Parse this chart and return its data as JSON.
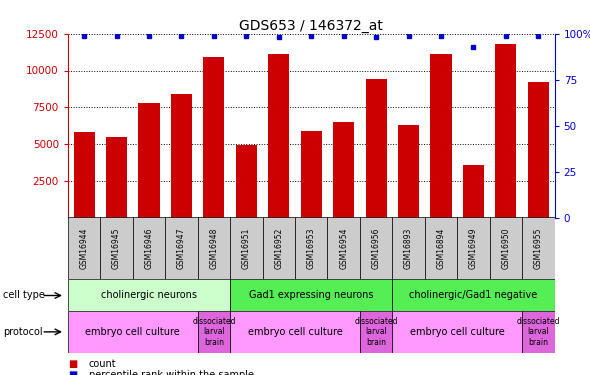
{
  "title": "GDS653 / 146372_at",
  "samples": [
    "GSM16944",
    "GSM16945",
    "GSM16946",
    "GSM16947",
    "GSM16948",
    "GSM16951",
    "GSM16952",
    "GSM16953",
    "GSM16954",
    "GSM16956",
    "GSM16893",
    "GSM16894",
    "GSM16949",
    "GSM16950",
    "GSM16955"
  ],
  "counts": [
    5800,
    5500,
    7800,
    8400,
    10900,
    4900,
    11100,
    5900,
    6500,
    9400,
    6300,
    11100,
    3600,
    11800,
    9200
  ],
  "percentile_ranks": [
    99,
    99,
    99,
    99,
    99,
    99,
    98,
    99,
    99,
    98,
    99,
    99,
    93,
    99,
    99
  ],
  "bar_color": "#cc0000",
  "dot_color": "#0000cc",
  "ylim_left": [
    0,
    12500
  ],
  "ylim_right": [
    0,
    100
  ],
  "yticks_left": [
    2500,
    5000,
    7500,
    10000,
    12500
  ],
  "yticks_right": [
    0,
    25,
    50,
    75,
    100
  ],
  "cell_type_groups": [
    {
      "label": "cholinergic neurons",
      "start": 0,
      "end": 5,
      "color": "#ccffcc"
    },
    {
      "label": "Gad1 expressing neurons",
      "start": 5,
      "end": 10,
      "color": "#55ee55"
    },
    {
      "label": "cholinergic/Gad1 negative",
      "start": 10,
      "end": 15,
      "color": "#55ee55"
    }
  ],
  "protocol_groups": [
    {
      "label": "embryo cell culture",
      "start": 0,
      "end": 4,
      "color": "#ff99ff"
    },
    {
      "label": "dissociated\nlarval\nbrain",
      "start": 4,
      "end": 5,
      "color": "#cc77cc"
    },
    {
      "label": "embryo cell culture",
      "start": 5,
      "end": 9,
      "color": "#ff99ff"
    },
    {
      "label": "dissociated\nlarval\nbrain",
      "start": 9,
      "end": 10,
      "color": "#cc77cc"
    },
    {
      "label": "embryo cell culture",
      "start": 10,
      "end": 14,
      "color": "#ff99ff"
    },
    {
      "label": "dissociated\nlarval\nbrain",
      "start": 14,
      "end": 15,
      "color": "#cc77cc"
    }
  ],
  "legend_count_label": "count",
  "legend_pct_label": "percentile rank within the sample",
  "cell_type_label": "cell type",
  "protocol_label": "protocol",
  "axis_left_color": "#cc0000",
  "axis_right_color": "#0000cc",
  "background_color": "#ffffff",
  "grid_color": "#000000",
  "tick_bg_color": "#cccccc",
  "fig_width": 5.9,
  "fig_height": 3.75,
  "dpi": 100
}
